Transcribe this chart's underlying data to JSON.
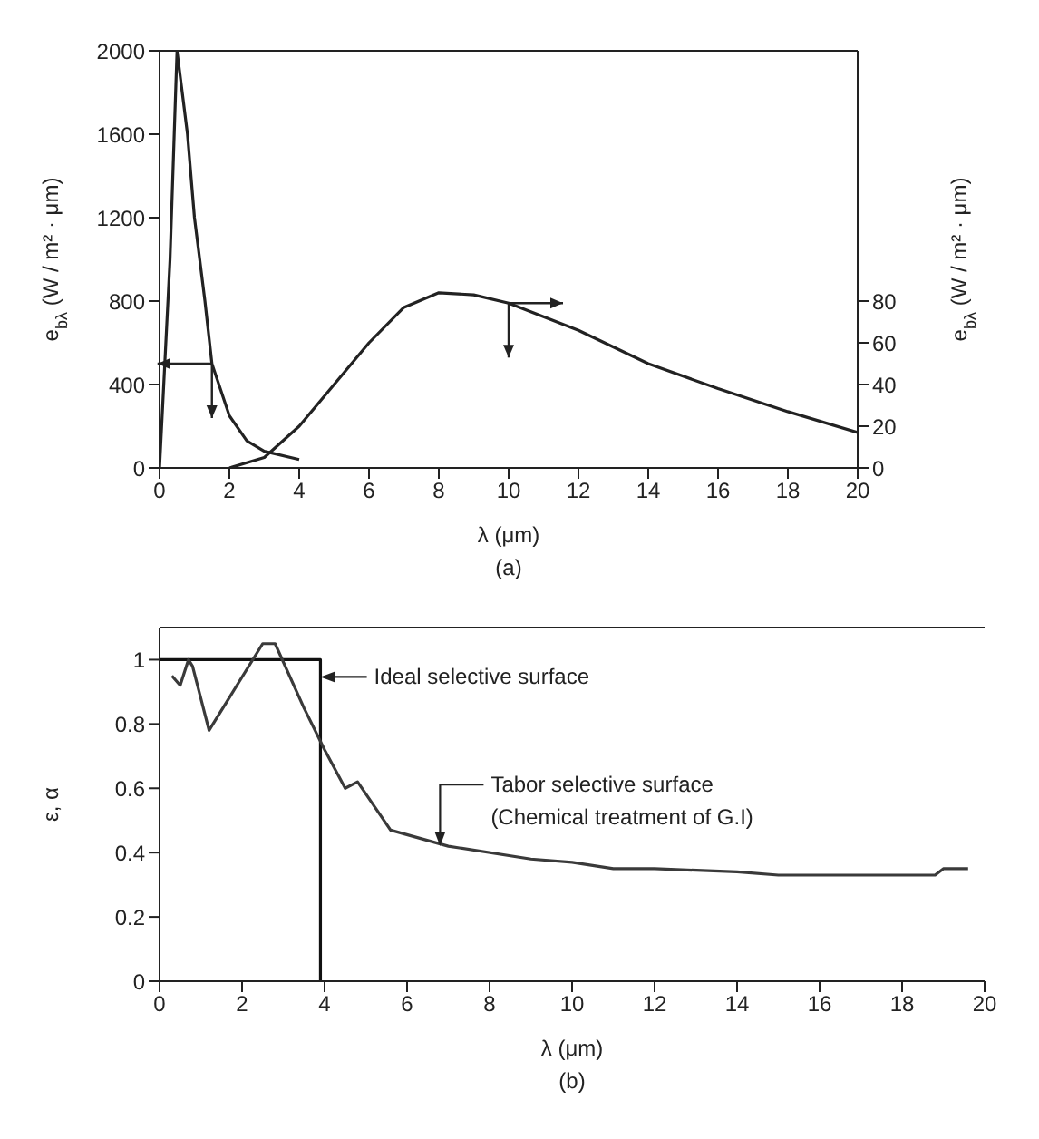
{
  "chart_data": [
    {
      "type": "line",
      "title": "(a)",
      "xlabel": "λ (μm)",
      "ylabel": "e$_{bλ}$(W / m² · μm)",
      "y2label": "e$_{bλ}$ (W / m² · μm)",
      "xlim": [
        0,
        20
      ],
      "xticks": [
        0,
        2,
        4,
        6,
        8,
        10,
        12,
        14,
        16,
        18,
        20
      ],
      "ylim": [
        0,
        2000
      ],
      "yticks": [
        0,
        400,
        800,
        1200,
        1600,
        2000
      ],
      "y2lim": [
        0,
        200
      ],
      "y2ticks": [
        0,
        20,
        40,
        60,
        80
      ],
      "series": [
        {
          "color": "#222222",
          "x": [
            0,
            0.3,
            0.5,
            0.8,
            1,
            1.3,
            1.5,
            2,
            2.5,
            3,
            4
          ],
          "values": [
            0,
            1000,
            2000,
            1600,
            1200,
            800,
            500,
            250,
            130,
            80,
            40
          ]
        },
        {
          "color": "#222222",
          "axis": "y2",
          "x": [
            2,
            3,
            4,
            5,
            6,
            7,
            8,
            9,
            10,
            12,
            14,
            16,
            18,
            20
          ],
          "values": [
            0,
            5,
            20,
            40,
            60,
            77,
            84,
            83,
            79,
            66,
            50,
            38,
            27,
            17
          ]
        }
      ]
    },
    {
      "type": "line",
      "title": "(b)",
      "xlabel": "λ (μm)",
      "ylabel": "ε, α",
      "xlim": [
        0,
        20
      ],
      "xticks": [
        0,
        2,
        4,
        6,
        8,
        10,
        12,
        14,
        16,
        18,
        20
      ],
      "ylim": [
        0,
        1.1
      ],
      "yticks": [
        0,
        0.2,
        0.4,
        0.6,
        0.8,
        1.0
      ],
      "series": [
        {
          "color": "#111111",
          "x": [
            0,
            3.9,
            3.9
          ],
          "values": [
            1.0,
            1.0,
            0
          ]
        },
        {
          "color": "#3a3a3a",
          "x": [
            0.3,
            0.5,
            0.7,
            0.8,
            1.2,
            2.5,
            2.8,
            3.5,
            4,
            4.5,
            4.8,
            5.6,
            7,
            9,
            10,
            11,
            12,
            14,
            15,
            17,
            18.8,
            19,
            19.6
          ],
          "values": [
            0.95,
            0.92,
            1.0,
            0.98,
            0.78,
            1.05,
            1.05,
            0.85,
            0.72,
            0.6,
            0.62,
            0.47,
            0.42,
            0.38,
            0.37,
            0.35,
            0.35,
            0.34,
            0.33,
            0.33,
            0.33,
            0.35,
            0.35
          ]
        }
      ],
      "annotations": [
        "Ideal selective surface",
        {
          "text": "Tabor selective surface\n(Chemical treatment of G.I)",
          "x": 6.8,
          "y": 0.42
        }
      ]
    }
  ]
}
